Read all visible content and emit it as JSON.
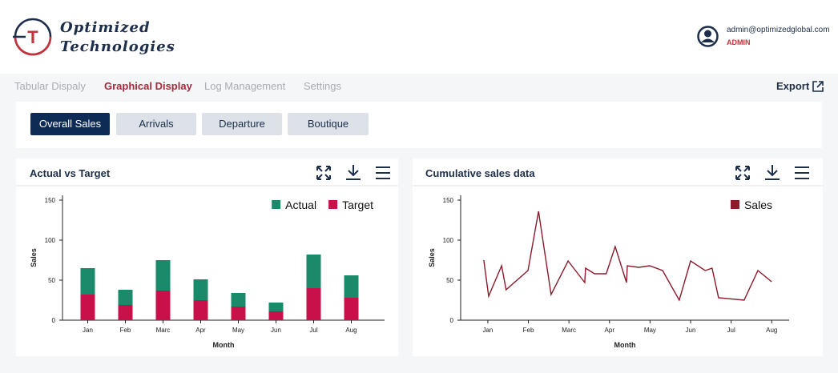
{
  "header": {
    "logo_line1": "Optimized",
    "logo_line2": "Technologies",
    "email": "admin@optimizedglobal.com",
    "role": "ADMIN"
  },
  "nav": {
    "items": [
      "Tabular Dispaly",
      "Graphical Display",
      "Log Management",
      "Settings"
    ],
    "export": "Export"
  },
  "tabs": [
    "Overall Sales",
    "Arrivals",
    "Departure",
    "Boutique"
  ],
  "chart_data": [
    {
      "type": "bar",
      "title": "Actual vs Target",
      "xlabel": "Month",
      "ylabel": "Sales",
      "categories": [
        "Jan",
        "Feb",
        "Marc",
        "Apr",
        "May",
        "Jun",
        "Jul",
        "Aug"
      ],
      "series": [
        {
          "name": "Actual",
          "color": "#1b8a6b",
          "values": [
            33,
            19,
            38,
            26,
            17,
            11,
            42,
            28
          ]
        },
        {
          "name": "Target",
          "color": "#c8104a",
          "values": [
            32,
            19,
            37,
            25,
            17,
            11,
            40,
            28
          ]
        }
      ],
      "ylim": [
        0,
        156
      ],
      "yticks": [
        0,
        50,
        100,
        150
      ],
      "legend": "top-right"
    },
    {
      "type": "line",
      "title": "Cumulative sales data",
      "xlabel": "Month",
      "ylabel": "Sales",
      "x": [
        -0.1,
        0.02,
        0.34,
        0.45,
        0.99,
        1.25,
        1.56,
        1.98,
        2.39,
        2.41,
        2.63,
        2.92,
        3.14,
        3.42,
        3.44,
        3.72,
        3.99,
        4.31,
        4.72,
        5.0,
        5.36,
        5.53,
        5.69,
        6.32,
        6.66,
        7.0
      ],
      "series": [
        {
          "name": "Sales",
          "color": "#8b1a2b",
          "values": [
            75,
            30,
            68,
            38,
            62,
            136,
            32,
            74,
            47,
            65,
            58,
            58,
            92,
            47,
            68,
            66,
            68,
            62,
            25,
            74,
            62,
            65,
            28,
            25,
            62,
            48
          ]
        }
      ],
      "xlim": [
        -0.67,
        7.43
      ],
      "xticks": [
        {
          "value": 0,
          "label": "Jan"
        },
        {
          "value": 1,
          "label": "Feb"
        },
        {
          "value": 2,
          "label": "Marc"
        },
        {
          "value": 3,
          "label": "Apr"
        },
        {
          "value": 4,
          "label": "May"
        },
        {
          "value": 5,
          "label": "Jun"
        },
        {
          "value": 6,
          "label": "Jul"
        },
        {
          "value": 7,
          "label": "Aug"
        }
      ],
      "ylim": [
        0,
        156
      ],
      "yticks": [
        0,
        50,
        100,
        150
      ],
      "legend": "top-right"
    }
  ]
}
